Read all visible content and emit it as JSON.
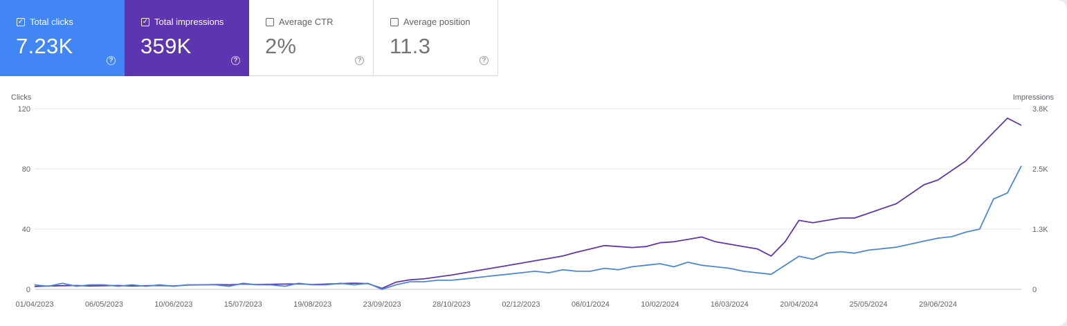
{
  "metrics": [
    {
      "label": "Total clicks",
      "value": "7.23K",
      "checked": true,
      "color": "#4285f4",
      "check_glyph": "✓",
      "help_glyph": "?"
    },
    {
      "label": "Total impressions",
      "value": "359K",
      "checked": true,
      "color": "#5e35b1",
      "check_glyph": "✓",
      "help_glyph": "?"
    },
    {
      "label": "Average CTR",
      "value": "2%",
      "checked": false,
      "color": "#ffffff",
      "check_glyph": "",
      "help_glyph": "?"
    },
    {
      "label": "Average position",
      "value": "11.3",
      "checked": false,
      "color": "#ffffff",
      "check_glyph": "",
      "help_glyph": "?"
    }
  ],
  "chart_data": {
    "type": "line",
    "xlabel": "",
    "ylabel_left": "Clicks",
    "ylabel_right": "Impressions",
    "left_ticks": [
      "0",
      "40",
      "80",
      "120"
    ],
    "right_ticks": [
      "0",
      "1.3K",
      "2.5K",
      "3.8K"
    ],
    "ylim_left": [
      0,
      120
    ],
    "ylim_right": [
      0,
      3800
    ],
    "x_ticks": [
      "01/04/2023",
      "06/05/2023",
      "10/06/2023",
      "15/07/2023",
      "19/08/2023",
      "23/09/2023",
      "28/10/2023",
      "02/12/2023",
      "06/01/2024",
      "10/02/2024",
      "16/03/2024",
      "20/04/2024",
      "25/05/2024",
      "29/06/2024"
    ],
    "grid": true,
    "series": [
      {
        "name": "Clicks",
        "axis": "left",
        "color": "#4a86d8",
        "x": [
          "01/04/2023",
          "08/04/2023",
          "15/04/2023",
          "22/04/2023",
          "29/04/2023",
          "06/05/2023",
          "13/05/2023",
          "20/05/2023",
          "27/05/2023",
          "03/06/2023",
          "10/06/2023",
          "17/06/2023",
          "24/06/2023",
          "01/07/2023",
          "08/07/2023",
          "15/07/2023",
          "22/07/2023",
          "29/07/2023",
          "05/08/2023",
          "12/08/2023",
          "19/08/2023",
          "26/08/2023",
          "02/09/2023",
          "09/09/2023",
          "16/09/2023",
          "23/09/2023",
          "30/09/2023",
          "07/10/2023",
          "14/10/2023",
          "21/10/2023",
          "28/10/2023",
          "04/11/2023",
          "11/11/2023",
          "18/11/2023",
          "25/11/2023",
          "02/12/2023",
          "09/12/2023",
          "16/12/2023",
          "23/12/2023",
          "30/12/2023",
          "06/01/2024",
          "13/01/2024",
          "20/01/2024",
          "27/01/2024",
          "03/02/2024",
          "10/02/2024",
          "17/02/2024",
          "24/02/2024",
          "02/03/2024",
          "09/03/2024",
          "16/03/2024",
          "23/03/2024",
          "30/03/2024",
          "06/04/2024",
          "13/04/2024",
          "20/04/2024",
          "27/04/2024",
          "04/05/2024",
          "11/05/2024",
          "18/05/2024",
          "25/05/2024",
          "01/06/2024",
          "08/06/2024",
          "15/06/2024",
          "22/06/2024",
          "29/06/2024",
          "06/07/2024",
          "13/07/2024",
          "20/07/2024",
          "27/07/2024",
          "03/08/2024",
          "10/08/2024"
        ],
        "y": [
          3,
          2,
          4,
          2,
          3,
          3,
          2,
          3,
          2,
          3,
          2,
          3,
          3,
          3,
          2,
          4,
          3,
          3,
          2,
          4,
          3,
          3,
          4,
          3,
          4,
          0,
          3,
          5,
          5,
          6,
          6,
          7,
          8,
          9,
          10,
          11,
          12,
          11,
          13,
          12,
          12,
          14,
          13,
          15,
          16,
          17,
          15,
          18,
          16,
          15,
          14,
          12,
          11,
          10,
          16,
          22,
          20,
          24,
          25,
          24,
          26,
          27,
          28,
          30,
          32,
          34,
          35,
          38,
          40,
          60,
          64,
          82
        ]
      },
      {
        "name": "Impressions",
        "axis": "right",
        "color": "#5e35b1",
        "x": [
          "01/04/2023",
          "08/04/2023",
          "15/04/2023",
          "22/04/2023",
          "29/04/2023",
          "06/05/2023",
          "13/05/2023",
          "20/05/2023",
          "27/05/2023",
          "03/06/2023",
          "10/06/2023",
          "17/06/2023",
          "24/06/2023",
          "01/07/2023",
          "08/07/2023",
          "15/07/2023",
          "22/07/2023",
          "29/07/2023",
          "05/08/2023",
          "12/08/2023",
          "19/08/2023",
          "26/08/2023",
          "02/09/2023",
          "09/09/2023",
          "16/09/2023",
          "23/09/2023",
          "30/09/2023",
          "07/10/2023",
          "14/10/2023",
          "21/10/2023",
          "28/10/2023",
          "04/11/2023",
          "11/11/2023",
          "18/11/2023",
          "25/11/2023",
          "02/12/2023",
          "09/12/2023",
          "16/12/2023",
          "23/12/2023",
          "30/12/2023",
          "06/01/2024",
          "13/01/2024",
          "20/01/2024",
          "27/01/2024",
          "03/02/2024",
          "10/02/2024",
          "17/02/2024",
          "24/02/2024",
          "02/03/2024",
          "09/03/2024",
          "16/03/2024",
          "23/03/2024",
          "30/03/2024",
          "06/04/2024",
          "13/04/2024",
          "20/04/2024",
          "27/04/2024",
          "04/05/2024",
          "11/05/2024",
          "18/05/2024",
          "25/05/2024",
          "01/06/2024",
          "08/06/2024",
          "15/06/2024",
          "22/06/2024",
          "29/06/2024",
          "06/07/2024",
          "13/07/2024",
          "20/07/2024",
          "27/07/2024",
          "03/08/2024",
          "10/08/2024"
        ],
        "y": [
          60,
          70,
          75,
          80,
          70,
          75,
          80,
          70,
          75,
          80,
          70,
          90,
          95,
          100,
          95,
          110,
          100,
          105,
          110,
          115,
          100,
          110,
          120,
          130,
          120,
          20,
          150,
          200,
          220,
          260,
          300,
          350,
          400,
          450,
          500,
          550,
          600,
          650,
          700,
          780,
          850,
          920,
          900,
          880,
          900,
          980,
          1000,
          1050,
          1100,
          1000,
          950,
          900,
          850,
          700,
          1000,
          1450,
          1400,
          1450,
          1500,
          1500,
          1600,
          1700,
          1800,
          2000,
          2200,
          2300,
          2500,
          2700,
          3000,
          3300,
          3600,
          3450
        ]
      }
    ]
  }
}
